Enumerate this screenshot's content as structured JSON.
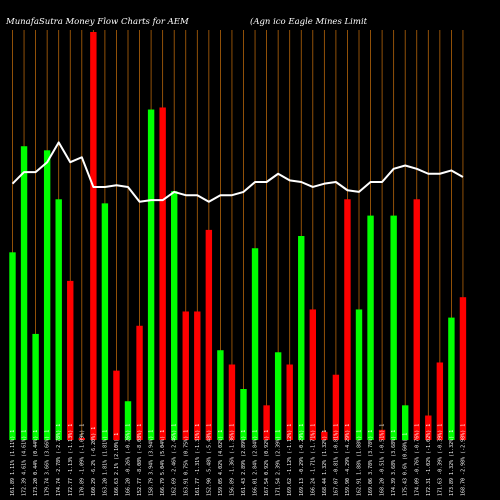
{
  "chart_data": {
    "type": "bar",
    "title_left": "MunafaSutra  Money Flow  Charts for AEM",
    "title_right": "(Agn                   ico  Eagle   Mines Limit",
    "xlabel": "",
    "ylabel": "",
    "grid": "vertical",
    "legend": "none",
    "colors": {
      "up": "#00ff00",
      "down": "#ff0000",
      "line": "#ffffff",
      "grid": "#b4640a",
      "background": "#000000"
    },
    "ylim": [
      0,
      100
    ],
    "line_ylim": [
      0,
      100
    ],
    "categories": [
      "161.89 1.11% (1.11%) 1",
      "172.39 4.61% (4.61%) 1",
      "173.20 0.44% (0.44%) 1",
      "179.74 3.66% (3.66%) 1",
      "174.74 -2.78% (-2.78%) 1",
      "172.77 -1.13% (-1.13%) 1",
      "170.89 -1.09% (-1.09%) 1",
      "160.29 -6.2% (-6.20%) 1",
      "163.20 1.81% (1.81%) 1",
      "166.63 2.1% (2.10%) 1",
      "166.20 -0.26% (-0.26%) 1",
      "152.77 -8.08% (-8.08%) 1",
      "158.79 3.94% (3.94%) 1",
      "166.79 5.04% (5.04%) 1",
      "162.69 -2.46% (-2.46%) 1",
      "163.91 0.75% (0.75%) 1",
      "161.77 -1.31% (-1.31%) 1",
      "152.90 -5.48% (-5.48%) 1",
      "159.05 4.02% (4.02%) 1",
      "156.89 -1.36% (-1.36%) 1",
      "161.43 2.89% (2.89%) 1",
      "166.01 2.84% (2.84%) 1",
      "167.54 0.92% (0.92%) 1",
      "171.54 2.39% (2.39%) 1",
      "169.62 -1.12% (-1.12%) 1",
      "169.13 -0.29% (-0.29%) 1",
      "166.24 -1.71% (-1.71%) 1",
      "168.44 1.32% (1.32%) 1",
      "167.07 -0.81% (-0.81%) 1",
      "159.90 -4.29% (-4.29%) 1",
      "162.91 1.88% (1.88%) 1",
      "169.06 3.78% (3.78%) 1",
      "168.20 -0.51% (-0.51%) 1",
      "174.39 3.68% (3.68%) 1",
      "175.43 0.6% (0.60%) 1",
      "174.09 -0.76% (-0.76%) 1",
      "172.31 -1.02% (-1.02%) 1",
      "171.63 -0.39% (-0.39%) 1",
      "173.89 1.32% (1.32%) 1",
      "168.70 -2.98% (-2.98%) 1"
    ],
    "bars": [
      {
        "value": 46,
        "dir": "up"
      },
      {
        "value": 72,
        "dir": "up"
      },
      {
        "value": 26,
        "dir": "up"
      },
      {
        "value": 71,
        "dir": "up"
      },
      {
        "value": 59,
        "dir": "up"
      },
      {
        "value": 39,
        "dir": "down"
      },
      {
        "value": 0.5,
        "dir": "down"
      },
      {
        "value": 100,
        "dir": "down"
      },
      {
        "value": 58,
        "dir": "up"
      },
      {
        "value": 17,
        "dir": "down"
      },
      {
        "value": 9.5,
        "dir": "up"
      },
      {
        "value": 28,
        "dir": "down"
      },
      {
        "value": 81,
        "dir": "up"
      },
      {
        "value": 81.5,
        "dir": "down"
      },
      {
        "value": 61,
        "dir": "up"
      },
      {
        "value": 31.5,
        "dir": "down"
      },
      {
        "value": 31.5,
        "dir": "down"
      },
      {
        "value": 51.5,
        "dir": "down"
      },
      {
        "value": 22,
        "dir": "up"
      },
      {
        "value": 18.5,
        "dir": "down"
      },
      {
        "value": 12.5,
        "dir": "up"
      },
      {
        "value": 47,
        "dir": "up"
      },
      {
        "value": 8.5,
        "dir": "down"
      },
      {
        "value": 21.5,
        "dir": "up"
      },
      {
        "value": 18.5,
        "dir": "down"
      },
      {
        "value": 50,
        "dir": "up"
      },
      {
        "value": 32,
        "dir": "down"
      },
      {
        "value": 2,
        "dir": "down"
      },
      {
        "value": 16,
        "dir": "down"
      },
      {
        "value": 59,
        "dir": "down"
      },
      {
        "value": 32,
        "dir": "up"
      },
      {
        "value": 55,
        "dir": "up"
      },
      {
        "value": 2.5,
        "dir": "down"
      },
      {
        "value": 55,
        "dir": "up"
      },
      {
        "value": 8.5,
        "dir": "up"
      },
      {
        "value": 59,
        "dir": "down"
      },
      {
        "value": 6,
        "dir": "down"
      },
      {
        "value": 19,
        "dir": "down"
      },
      {
        "value": 30,
        "dir": "up"
      },
      {
        "value": 35,
        "dir": "down"
      }
    ],
    "line": [
      59.5,
      63,
      63,
      66,
      72,
      66,
      67.5,
      58.5,
      58.5,
      59,
      58.5,
      54,
      54.5,
      54.5,
      57,
      56,
      56,
      54,
      56,
      56,
      57,
      60,
      60,
      62.5,
      60.5,
      60,
      58.5,
      59.5,
      60,
      57.5,
      57,
      60,
      60,
      64,
      65,
      64,
      62.5,
      62.5,
      63.5,
      61.5
    ]
  }
}
